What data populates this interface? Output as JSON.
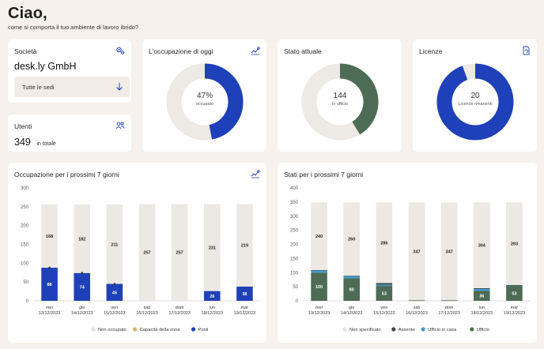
{
  "header": {
    "title": "Ciao,",
    "subtitle": "come si comporta il tuo ambiente di lavoro ibrido?"
  },
  "company_card": {
    "title": "Società",
    "company_name": "desk.ly GmbH",
    "location_select": "Tutte le sedi",
    "icon": "gear-icon"
  },
  "users_card": {
    "title": "Utenti",
    "count": "349",
    "suffix": "in totale",
    "icon": "users-icon"
  },
  "occupancy_today": {
    "title": "L'occupazione di oggi",
    "value": "47%",
    "label": "occupato",
    "fraction": 0.47,
    "color": "#1e40b8",
    "icon": "chart-settings-icon"
  },
  "current_status": {
    "title": "Stato attuale",
    "value": "144",
    "label": "In ufficio",
    "fraction": 0.413,
    "color": "#4d6b55"
  },
  "licenses": {
    "title": "Licenze",
    "value": "20",
    "label": "Licenze rimanenti",
    "fraction": 0.946,
    "color": "#1e40b8",
    "icon": "document-refresh-icon"
  },
  "occupancy_chart": {
    "title": "Occupazione per i prossimi 7 giorni",
    "icon": "chart-settings-icon",
    "legend": [
      {
        "label": "Non occupato",
        "color": "#e5e2de"
      },
      {
        "label": "Capacità della zona",
        "color": "#e8b25a"
      },
      {
        "label": "Posti",
        "color": "#1e40b8"
      }
    ]
  },
  "status_chart": {
    "title": "Stati per i prossimi 7 giorni",
    "legend": [
      {
        "label": "Non specificato",
        "color": "#e5e2de"
      },
      {
        "label": "Assente",
        "color": "#3f4a4d"
      },
      {
        "label": "Ufficio in casa",
        "color": "#3f9bd6"
      },
      {
        "label": "Ufficio",
        "color": "#4d6b55"
      }
    ]
  },
  "chart_data": [
    {
      "type": "bar",
      "title": "Occupazione per i prossimi 7 giorni",
      "categories": [
        [
          "mer",
          "13/12/2023"
        ],
        [
          "gio",
          "14/12/2023"
        ],
        [
          "ven",
          "15/12/2023"
        ],
        [
          "sab",
          "16/12/2023"
        ],
        [
          "dom",
          "17/12/2023"
        ],
        [
          "lun",
          "18/12/2023"
        ],
        [
          "mar",
          "19/12/2023"
        ]
      ],
      "ylim": [
        0,
        300
      ],
      "yticks": [
        0,
        50,
        100,
        150,
        200,
        250,
        300
      ],
      "series": [
        {
          "name": "Posti",
          "values": [
            88,
            74,
            45,
            0,
            0,
            26,
            38
          ],
          "labels": [
            "88",
            "74",
            "45",
            "0",
            "0",
            "26",
            "38"
          ]
        },
        {
          "name": "Non occupato",
          "values": [
            168,
            182,
            211,
            257,
            257,
            231,
            219
          ],
          "labels": [
            "168",
            "182",
            "211",
            "257",
            "257",
            "231",
            "219"
          ]
        }
      ],
      "capacity_markers": [
        1,
        1,
        1,
        0,
        0,
        0,
        0
      ]
    },
    {
      "type": "bar",
      "title": "Stati per i prossimi 7 giorni",
      "categories": [
        [
          "mer",
          "13/12/2023"
        ],
        [
          "gio",
          "14/12/2023"
        ],
        [
          "ven",
          "15/12/2023"
        ],
        [
          "sab",
          "16/12/2023"
        ],
        [
          "dom",
          "17/12/2023"
        ],
        [
          "lun",
          "18/12/2023"
        ],
        [
          "mar",
          "19/12/2023"
        ]
      ],
      "ylim": [
        0,
        400
      ],
      "yticks": [
        0,
        50,
        100,
        150,
        200,
        250,
        300,
        350,
        400
      ],
      "series": [
        {
          "name": "Ufficio",
          "values": [
            100,
            80,
            53,
            0,
            0,
            36,
            53
          ],
          "labels": [
            "100",
            "80",
            "53",
            "",
            "",
            "36",
            "53"
          ]
        },
        {
          "name": "Ufficio in casa",
          "values": [
            7,
            7,
            4,
            0,
            0,
            6,
            2
          ],
          "labels": [
            "",
            "",
            "",
            "",
            "",
            "",
            ""
          ]
        },
        {
          "name": "Assente",
          "values": [
            2,
            2,
            6,
            2,
            2,
            3,
            1
          ],
          "labels": [
            "",
            "",
            "",
            "",
            "",
            "",
            ""
          ]
        },
        {
          "name": "Non specificato",
          "values": [
            240,
            260,
            286,
            347,
            347,
            304,
            293
          ],
          "labels": [
            "240",
            "260",
            "286",
            "347",
            "347",
            "304",
            "293"
          ]
        }
      ]
    }
  ]
}
